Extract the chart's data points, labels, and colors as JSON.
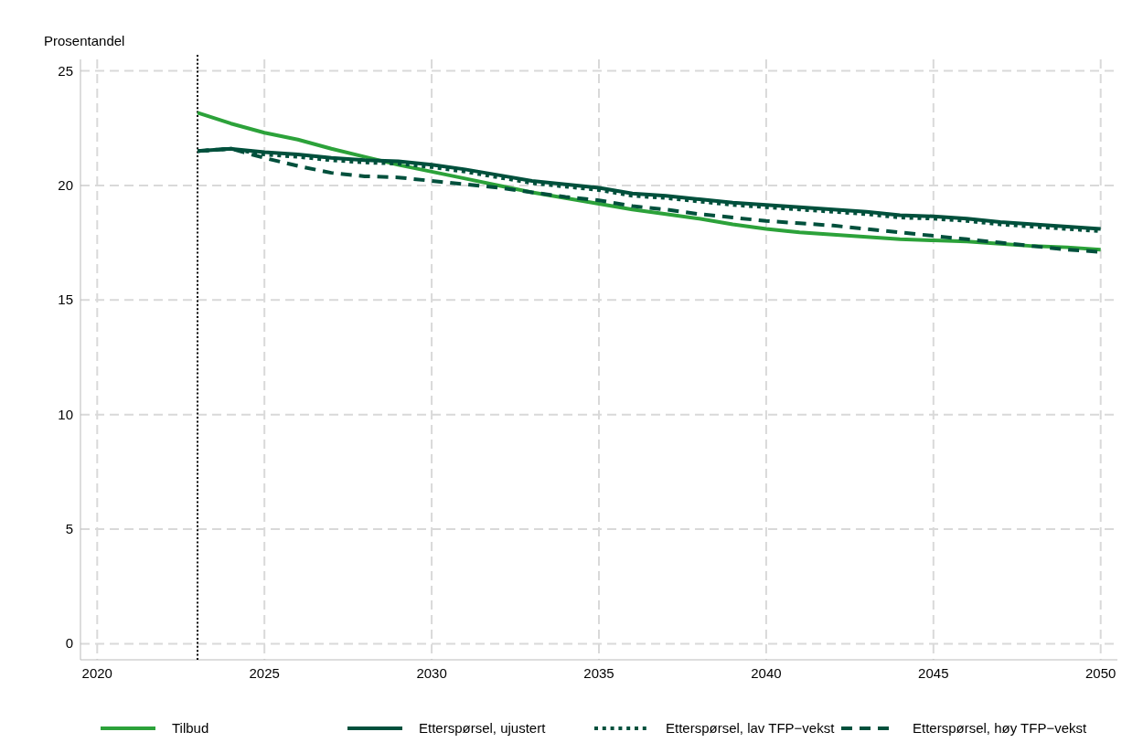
{
  "chart_data": {
    "type": "line",
    "ylabel": "Prosentandel",
    "x": [
      2023,
      2024,
      2025,
      2026,
      2027,
      2028,
      2029,
      2030,
      2031,
      2032,
      2033,
      2034,
      2035,
      2036,
      2037,
      2038,
      2039,
      2040,
      2041,
      2042,
      2043,
      2044,
      2045,
      2046,
      2047,
      2048,
      2049,
      2050
    ],
    "xlim": [
      2019.5,
      2050.5
    ],
    "xticks": [
      2020,
      2025,
      2030,
      2035,
      2040,
      2045,
      2050
    ],
    "ylim": [
      -0.7,
      25.5
    ],
    "yticks": [
      0,
      5,
      10,
      15,
      20,
      25
    ],
    "grid": true,
    "legend": "bottom",
    "marker": "none",
    "ref_lines": [
      {
        "axis": "x",
        "value": 2023,
        "color": "#000000",
        "line_style": "dotted"
      }
    ],
    "series": [
      {
        "name": "Tilbud",
        "color": "#2ca23a",
        "line_style": "solid",
        "values": [
          23.17,
          22.7,
          22.3,
          22.0,
          21.6,
          21.25,
          20.9,
          20.6,
          20.3,
          20.0,
          19.7,
          19.45,
          19.2,
          18.95,
          18.75,
          18.55,
          18.3,
          18.1,
          17.95,
          17.85,
          17.75,
          17.65,
          17.6,
          17.55,
          17.45,
          17.35,
          17.3,
          17.2
        ]
      },
      {
        "name": "Etterspørsel, ujustert",
        "color": "#00503c",
        "line_style": "solid",
        "values": [
          21.5,
          21.6,
          21.45,
          21.35,
          21.2,
          21.1,
          21.05,
          20.9,
          20.7,
          20.45,
          20.2,
          20.05,
          19.9,
          19.65,
          19.55,
          19.4,
          19.25,
          19.15,
          19.05,
          18.95,
          18.85,
          18.7,
          18.65,
          18.55,
          18.4,
          18.3,
          18.2,
          18.1
        ]
      },
      {
        "name": "Etterspørsel, lav TFP−vekst",
        "color": "#00503c",
        "line_style": "dotted",
        "values": [
          21.5,
          21.6,
          21.35,
          21.25,
          21.1,
          21.0,
          20.95,
          20.8,
          20.6,
          20.35,
          20.1,
          19.95,
          19.8,
          19.55,
          19.45,
          19.3,
          19.15,
          19.05,
          18.95,
          18.85,
          18.75,
          18.6,
          18.55,
          18.45,
          18.3,
          18.2,
          18.1,
          18.0
        ]
      },
      {
        "name": "Etterspørsel, høy TFP−vekst",
        "color": "#00503c",
        "line_style": "dashed",
        "values": [
          21.5,
          21.6,
          21.2,
          20.85,
          20.55,
          20.4,
          20.35,
          20.2,
          20.05,
          19.9,
          19.7,
          19.5,
          19.35,
          19.1,
          18.95,
          18.75,
          18.6,
          18.45,
          18.35,
          18.25,
          18.1,
          17.95,
          17.8,
          17.65,
          17.5,
          17.35,
          17.2,
          17.1
        ]
      }
    ]
  }
}
